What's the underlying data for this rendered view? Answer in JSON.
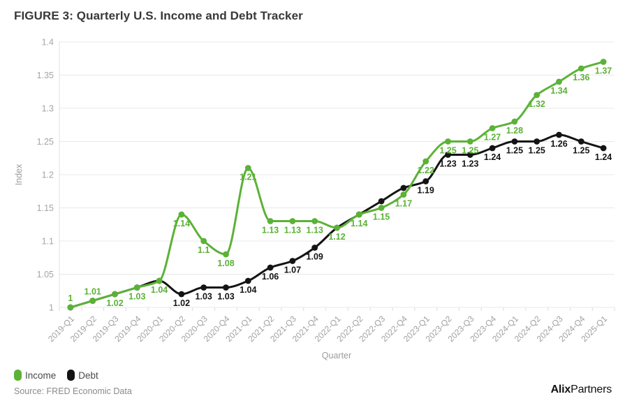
{
  "chart_data": {
    "type": "line",
    "title": "FIGURE 3: Quarterly U.S. Income and Debt Tracker",
    "xlabel": "Quarter",
    "ylabel": "Index",
    "x": [
      "2019-Q1",
      "2019-Q2",
      "2019-Q3",
      "2019-Q4",
      "2020-Q1",
      "2020-Q2",
      "2020-Q3",
      "2020-Q4",
      "2021-Q1",
      "2021-Q2",
      "2021-Q3",
      "2021-Q4",
      "2022-Q1",
      "2022-Q2",
      "2022-Q3",
      "2022-Q4",
      "2023-Q1",
      "2023-Q2",
      "2023-Q3",
      "2023-Q4",
      "2024-Q1",
      "2024-Q2",
      "2024-Q3",
      "2024-Q4",
      "2025-Q1"
    ],
    "series": [
      {
        "name": "Debt",
        "color": "#141414",
        "values": [
          1,
          1.01,
          1.02,
          1.03,
          1.04,
          1.02,
          1.03,
          1.03,
          1.04,
          1.06,
          1.07,
          1.09,
          1.12,
          1.14,
          1.16,
          1.18,
          1.19,
          1.23,
          1.23,
          1.24,
          1.25,
          1.25,
          1.26,
          1.25,
          1.24
        ],
        "point_labels": [
          "",
          "",
          "",
          "",
          "",
          "1.02",
          "1.03",
          "1.03",
          "1.04",
          "1.06",
          "1.07",
          "1.09",
          "",
          "",
          "",
          "",
          "1.19",
          "1.23",
          "1.23",
          "1.24",
          "1.25",
          "1.25",
          "1.26",
          "1.25",
          "1.24"
        ],
        "labels_above_indices": []
      },
      {
        "name": "Income",
        "color": "#5bb236",
        "values": [
          1,
          1.01,
          1.02,
          1.03,
          1.04,
          1.14,
          1.1,
          1.08,
          1.21,
          1.13,
          1.13,
          1.13,
          1.12,
          1.14,
          1.15,
          1.17,
          1.22,
          1.25,
          1.25,
          1.27,
          1.28,
          1.32,
          1.34,
          1.36,
          1.37
        ],
        "point_labels": [
          "1",
          "1.01",
          "1.02",
          "1.03",
          "1.04",
          "1.14",
          "1.1",
          "1.08",
          "1.21",
          "1.13",
          "1.13",
          "1.13",
          "1.12",
          "1.14",
          "1.15",
          "1.17",
          "1.22",
          "1.25",
          "1.25",
          "1.27",
          "1.28",
          "1.32",
          "1.34",
          "1.36",
          "1.37"
        ],
        "labels_above_indices": [
          0,
          1
        ]
      }
    ],
    "ylim": [
      1,
      1.4
    ],
    "yticks": [
      1,
      1.05,
      1.1,
      1.15,
      1.2,
      1.25,
      1.3,
      1.35,
      1.4
    ],
    "ytick_labels": [
      "1",
      "1.05",
      "1.1",
      "1.15",
      "1.2",
      "1.25",
      "1.3",
      "1.35",
      "1.4"
    ],
    "grid": true,
    "smooth": true,
    "legend_position": "bottom-left",
    "legend_order": [
      "Income",
      "Debt"
    ]
  },
  "footer": {
    "source": "Source: FRED Economic Data",
    "logo_bold": "Alix",
    "logo_regular": "Partners"
  }
}
